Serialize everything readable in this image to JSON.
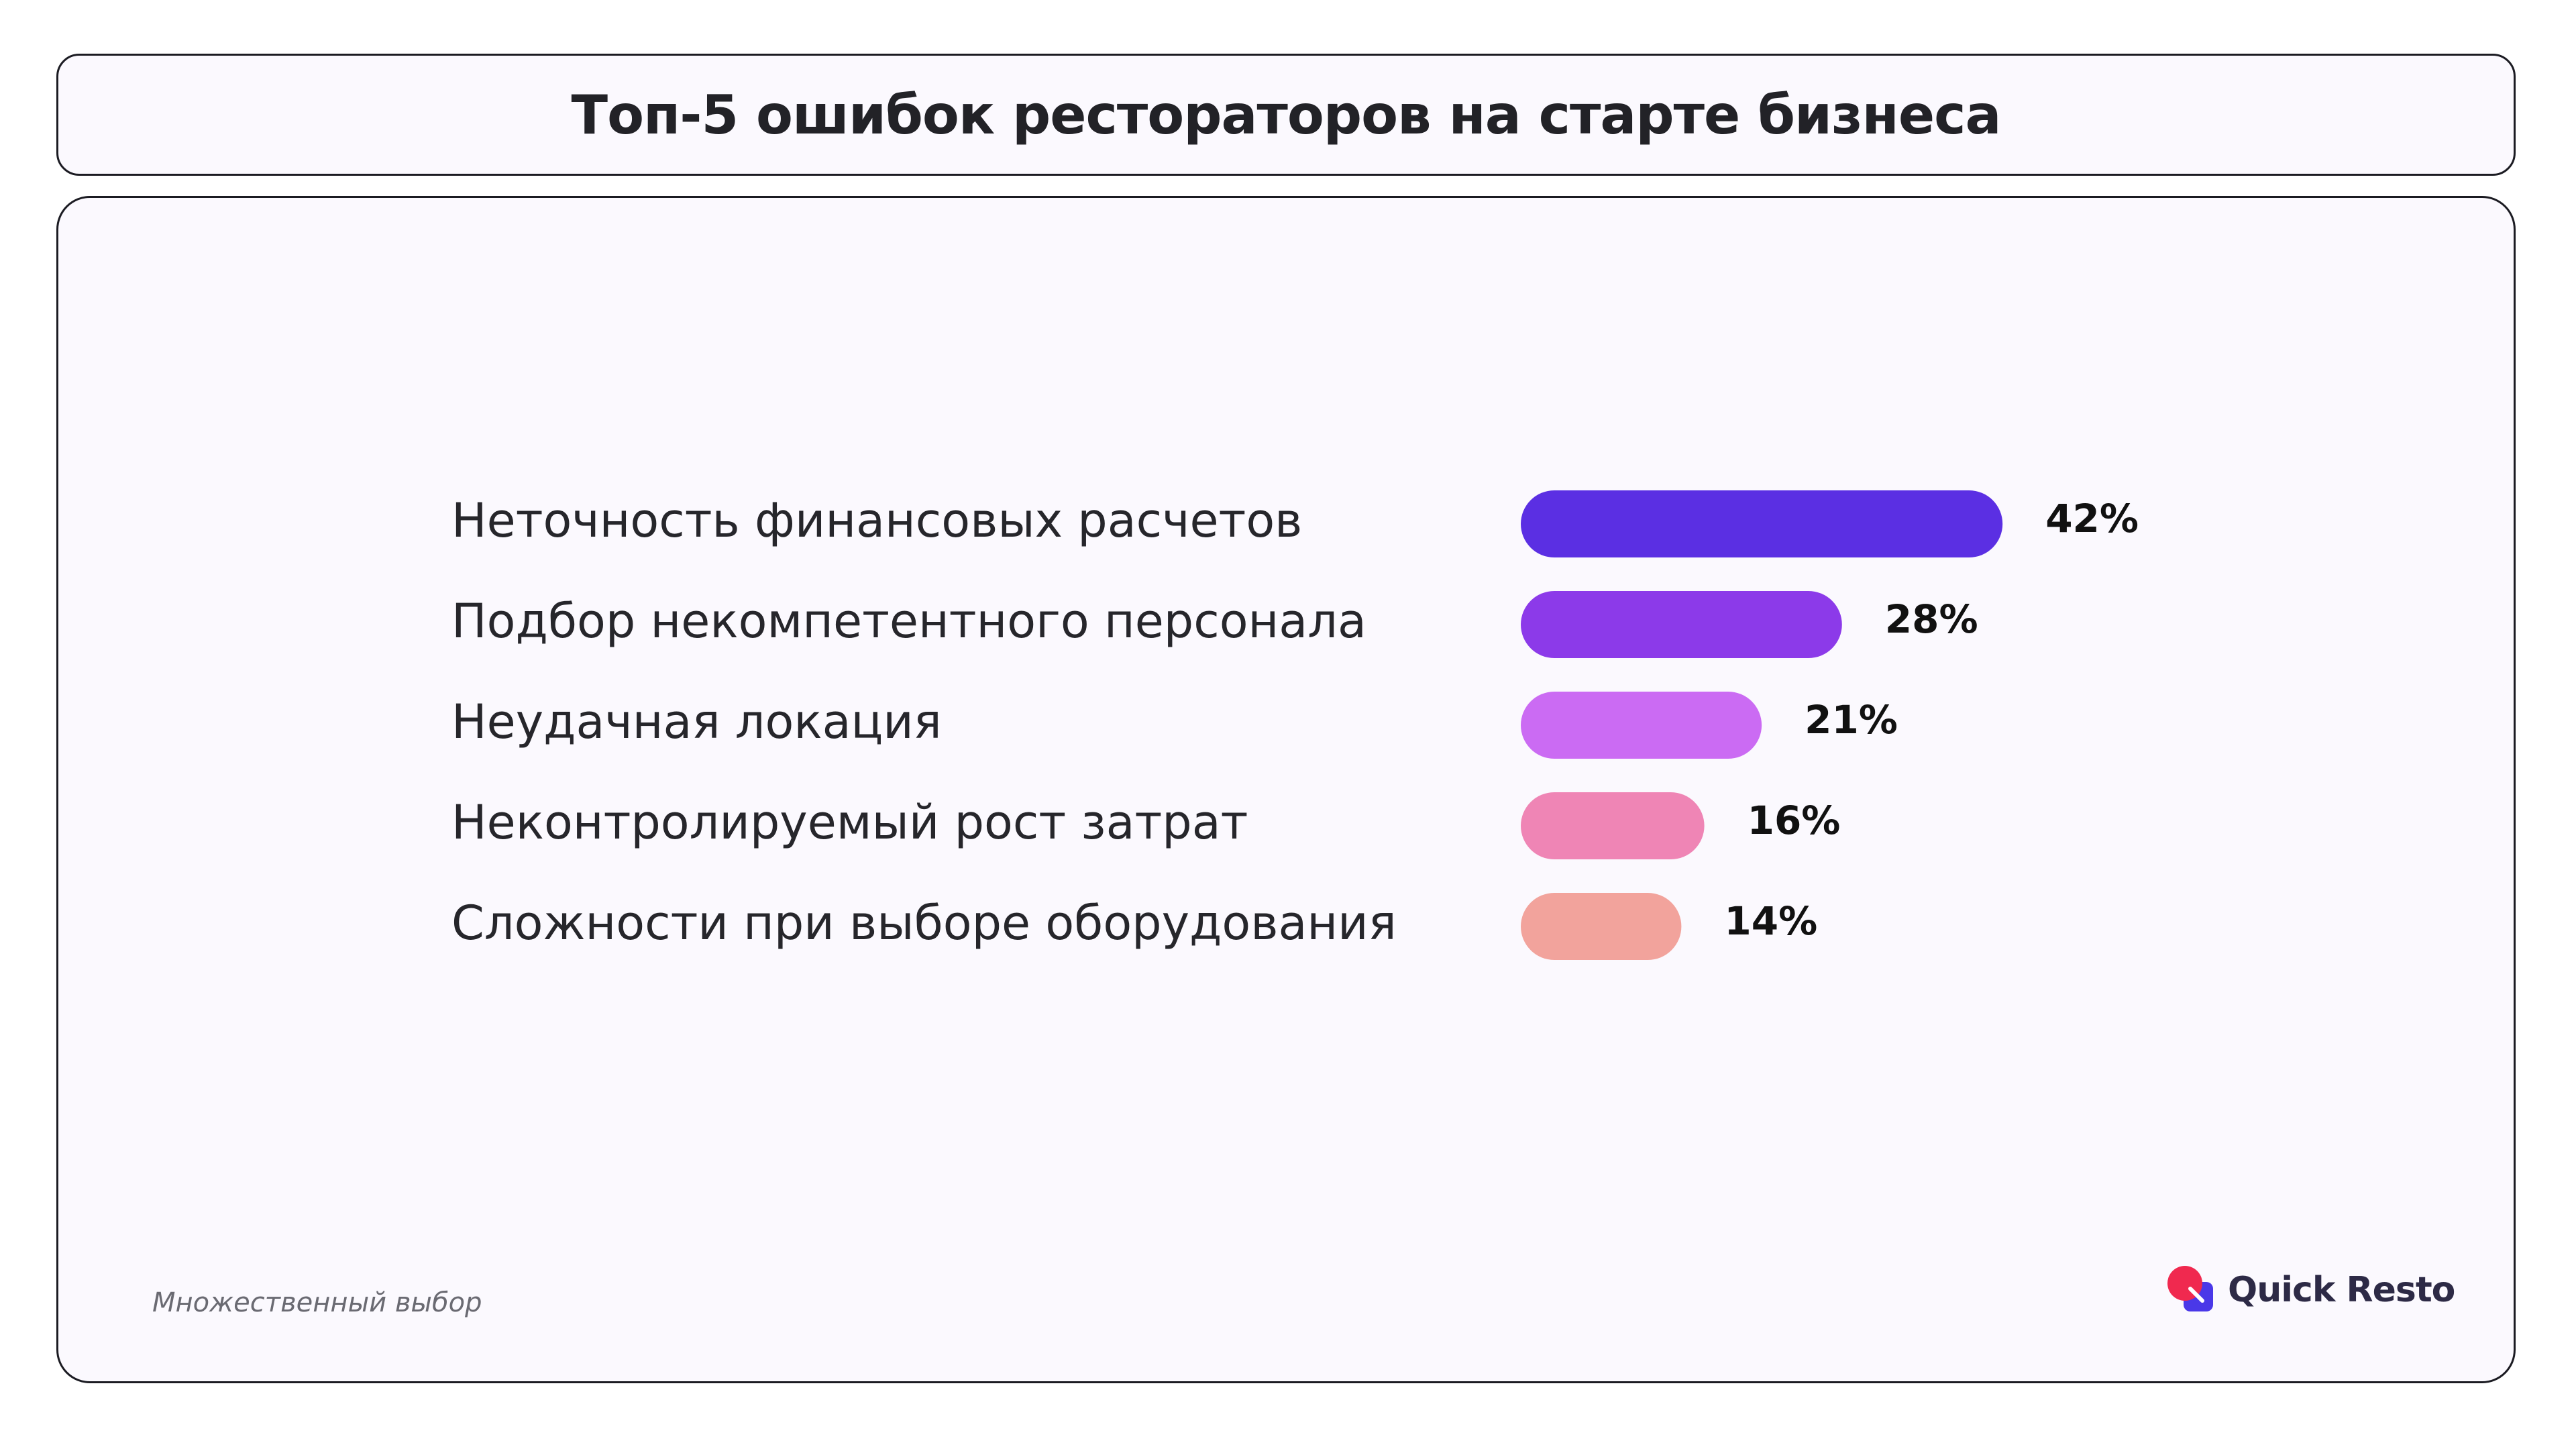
{
  "title": "Топ-5 ошибок рестораторов на старте бизнеса",
  "note": "Множественный выбор",
  "logo_text": "Quick Resto",
  "chart_data": {
    "type": "bar",
    "orientation": "horizontal",
    "categories": [
      "Неточность финансовых расчетов",
      "Подбор некомпетентного персонала",
      "Неудачная локация",
      "Неконтролируемый рост затрат",
      "Сложности при выборе оборудования"
    ],
    "values": [
      42,
      28,
      21,
      16,
      14
    ],
    "value_labels": [
      "42%",
      "28%",
      "21%",
      "16%",
      "14%"
    ],
    "colors": [
      "#5b2fe3",
      "#8c3ae9",
      "#cb6bf3",
      "#ef85b5",
      "#f2a39c"
    ],
    "unit": "%",
    "grid": false,
    "legend": "none"
  },
  "colors": {
    "border": "#1b1b22",
    "panel_bg": "#fbf9fe",
    "label_text": "#26262b",
    "value_text": "#111111",
    "logo_red": "#f0294f",
    "logo_blue": "#4a38e8"
  }
}
